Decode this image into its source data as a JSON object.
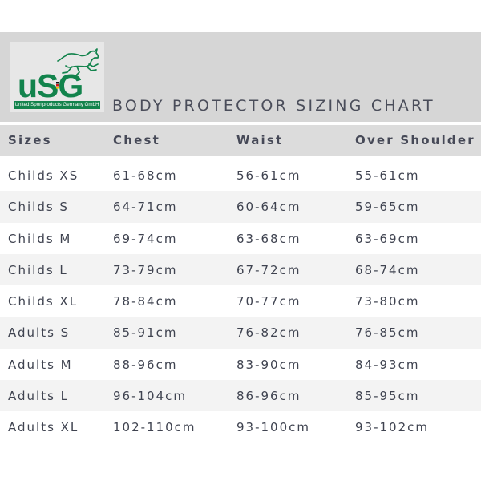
{
  "logo": {
    "letters": "uSG",
    "caption": "United Sportproducts Germany GmbH",
    "icon": "horse-icon",
    "colors": {
      "green": "#12834c",
      "flag_black": "#111111",
      "flag_red": "#d01c1f",
      "flag_gold": "#f2c500"
    }
  },
  "title": "BODY PROTECTOR SIZING CHART",
  "table": {
    "headers": [
      "Sizes",
      "Chest",
      "Waist",
      "Over Shoulder"
    ],
    "rows": [
      [
        "Childs XS",
        "61-68cm",
        "56-61cm",
        "55-61cm"
      ],
      [
        "Childs S",
        "64-71cm",
        "60-64cm",
        "59-65cm"
      ],
      [
        "Childs M",
        "69-74cm",
        "63-68cm",
        "63-69cm"
      ],
      [
        "Childs L",
        "73-79cm",
        "67-72cm",
        "68-74cm"
      ],
      [
        "Childs XL",
        "78-84cm",
        "70-77cm",
        "73-80cm"
      ],
      [
        "Adults S",
        "85-91cm",
        "76-82cm",
        "76-85cm"
      ],
      [
        "Adults M",
        "88-96cm",
        "83-90cm",
        "84-93cm"
      ],
      [
        "Adults L",
        "96-104cm",
        "86-96cm",
        "85-95cm"
      ],
      [
        "Adults XL",
        "102-110cm",
        "93-100cm",
        "93-102cm"
      ]
    ]
  },
  "colors": {
    "header_band": "#d6d6d6",
    "column_header_band": "#dcdcdc",
    "row_shade": "#f3f3f3",
    "text": "#3f4350"
  }
}
